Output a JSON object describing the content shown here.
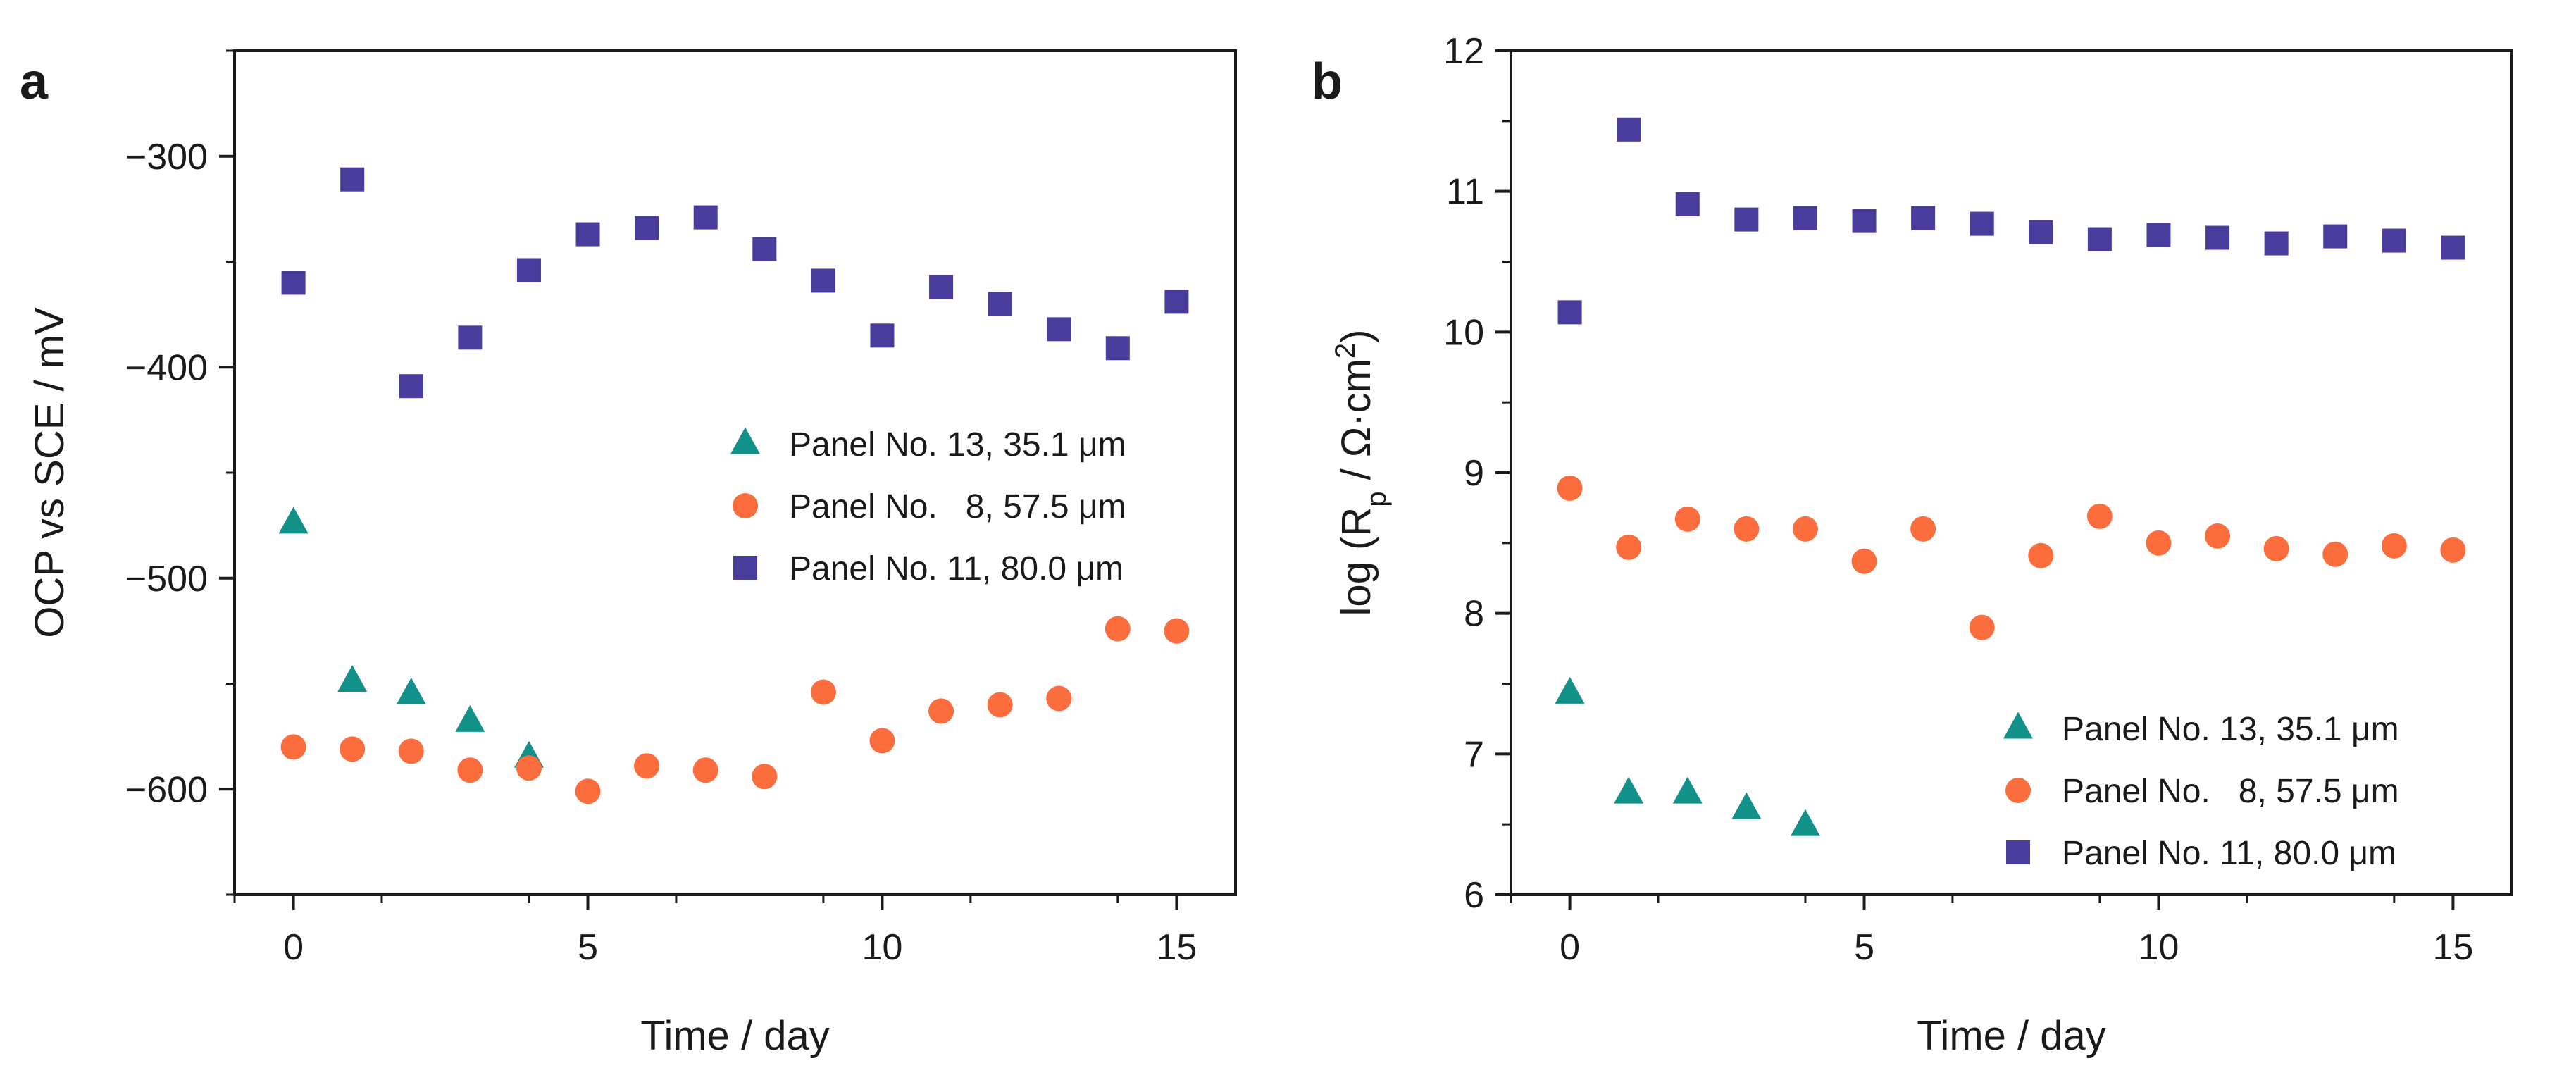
{
  "colors": {
    "teal": "#12918a",
    "orange": "#fc6d3e",
    "purple": "#483c9c",
    "axis": "#1a1a1a"
  },
  "chart_data": [
    {
      "panel": "a",
      "type": "scatter",
      "xlabel": "Time / day",
      "ylabel": "OCP vs SCE / mV",
      "xlim": [
        -1,
        16
      ],
      "ylim": [
        -650,
        -250
      ],
      "xticks": [
        0,
        5,
        10,
        15
      ],
      "yticks": [
        -300,
        -400,
        -500,
        -600
      ],
      "grid": false,
      "legend_position": "right-middle",
      "series": [
        {
          "name": "Panel No. 13, 35.1 μm",
          "marker": "triangle",
          "color": "#12918a",
          "x": [
            0,
            1,
            2,
            3,
            4
          ],
          "y": [
            -474,
            -549,
            -555,
            -568,
            -585
          ]
        },
        {
          "name": "Panel No.   8, 57.5 μm",
          "marker": "circle",
          "color": "#fc6d3e",
          "x": [
            0,
            1,
            2,
            3,
            4,
            5,
            6,
            7,
            8,
            9,
            10,
            11,
            12,
            13,
            14,
            15
          ],
          "y": [
            -580,
            -581,
            -582,
            -591,
            -590,
            -601,
            -589,
            -591,
            -594,
            -554,
            -577,
            -563,
            -560,
            -557,
            -524,
            -525
          ]
        },
        {
          "name": "Panel No. 11, 80.0 μm",
          "marker": "square",
          "color": "#483c9c",
          "x": [
            0,
            1,
            2,
            3,
            4,
            5,
            6,
            7,
            8,
            9,
            10,
            11,
            12,
            13,
            14,
            15
          ],
          "y": [
            -360,
            -311,
            -409,
            -386,
            -354,
            -337,
            -334,
            -329,
            -344,
            -359,
            -385,
            -362,
            -370,
            -382,
            -391,
            -369
          ]
        }
      ]
    },
    {
      "panel": "b",
      "type": "scatter",
      "xlabel": "Time / day",
      "ylabel": "log (Rp / Ω·cm2)",
      "ylabel_parts": {
        "prefix": "log (R",
        "sub": "p",
        "middle": " / Ω·cm",
        "sup": "2",
        "suffix": ")"
      },
      "xlim": [
        -1,
        16
      ],
      "ylim": [
        6,
        12
      ],
      "xticks": [
        0,
        5,
        10,
        15
      ],
      "yticks": [
        6,
        7,
        8,
        9,
        10,
        11,
        12
      ],
      "grid": false,
      "legend_position": "bottom-right",
      "series": [
        {
          "name": "Panel No. 13, 35.1 μm",
          "marker": "triangle",
          "color": "#12918a",
          "x": [
            0,
            1,
            2,
            3,
            4
          ],
          "y": [
            7.43,
            6.72,
            6.72,
            6.61,
            6.49
          ]
        },
        {
          "name": "Panel No.   8, 57.5 μm",
          "marker": "circle",
          "color": "#fc6d3e",
          "x": [
            0,
            1,
            2,
            3,
            4,
            5,
            6,
            7,
            8,
            9,
            10,
            11,
            12,
            13,
            14,
            15
          ],
          "y": [
            8.89,
            8.47,
            8.67,
            8.6,
            8.6,
            8.37,
            8.6,
            7.9,
            8.41,
            8.69,
            8.5,
            8.55,
            8.46,
            8.42,
            8.48,
            8.45
          ]
        },
        {
          "name": "Panel No. 11, 80.0 μm",
          "marker": "square",
          "color": "#483c9c",
          "x": [
            0,
            1,
            2,
            3,
            4,
            5,
            6,
            7,
            8,
            9,
            10,
            11,
            12,
            13,
            14,
            15
          ],
          "y": [
            10.14,
            11.44,
            10.91,
            10.8,
            10.81,
            10.79,
            10.81,
            10.77,
            10.71,
            10.66,
            10.69,
            10.67,
            10.63,
            10.68,
            10.65,
            10.6
          ]
        }
      ]
    }
  ]
}
